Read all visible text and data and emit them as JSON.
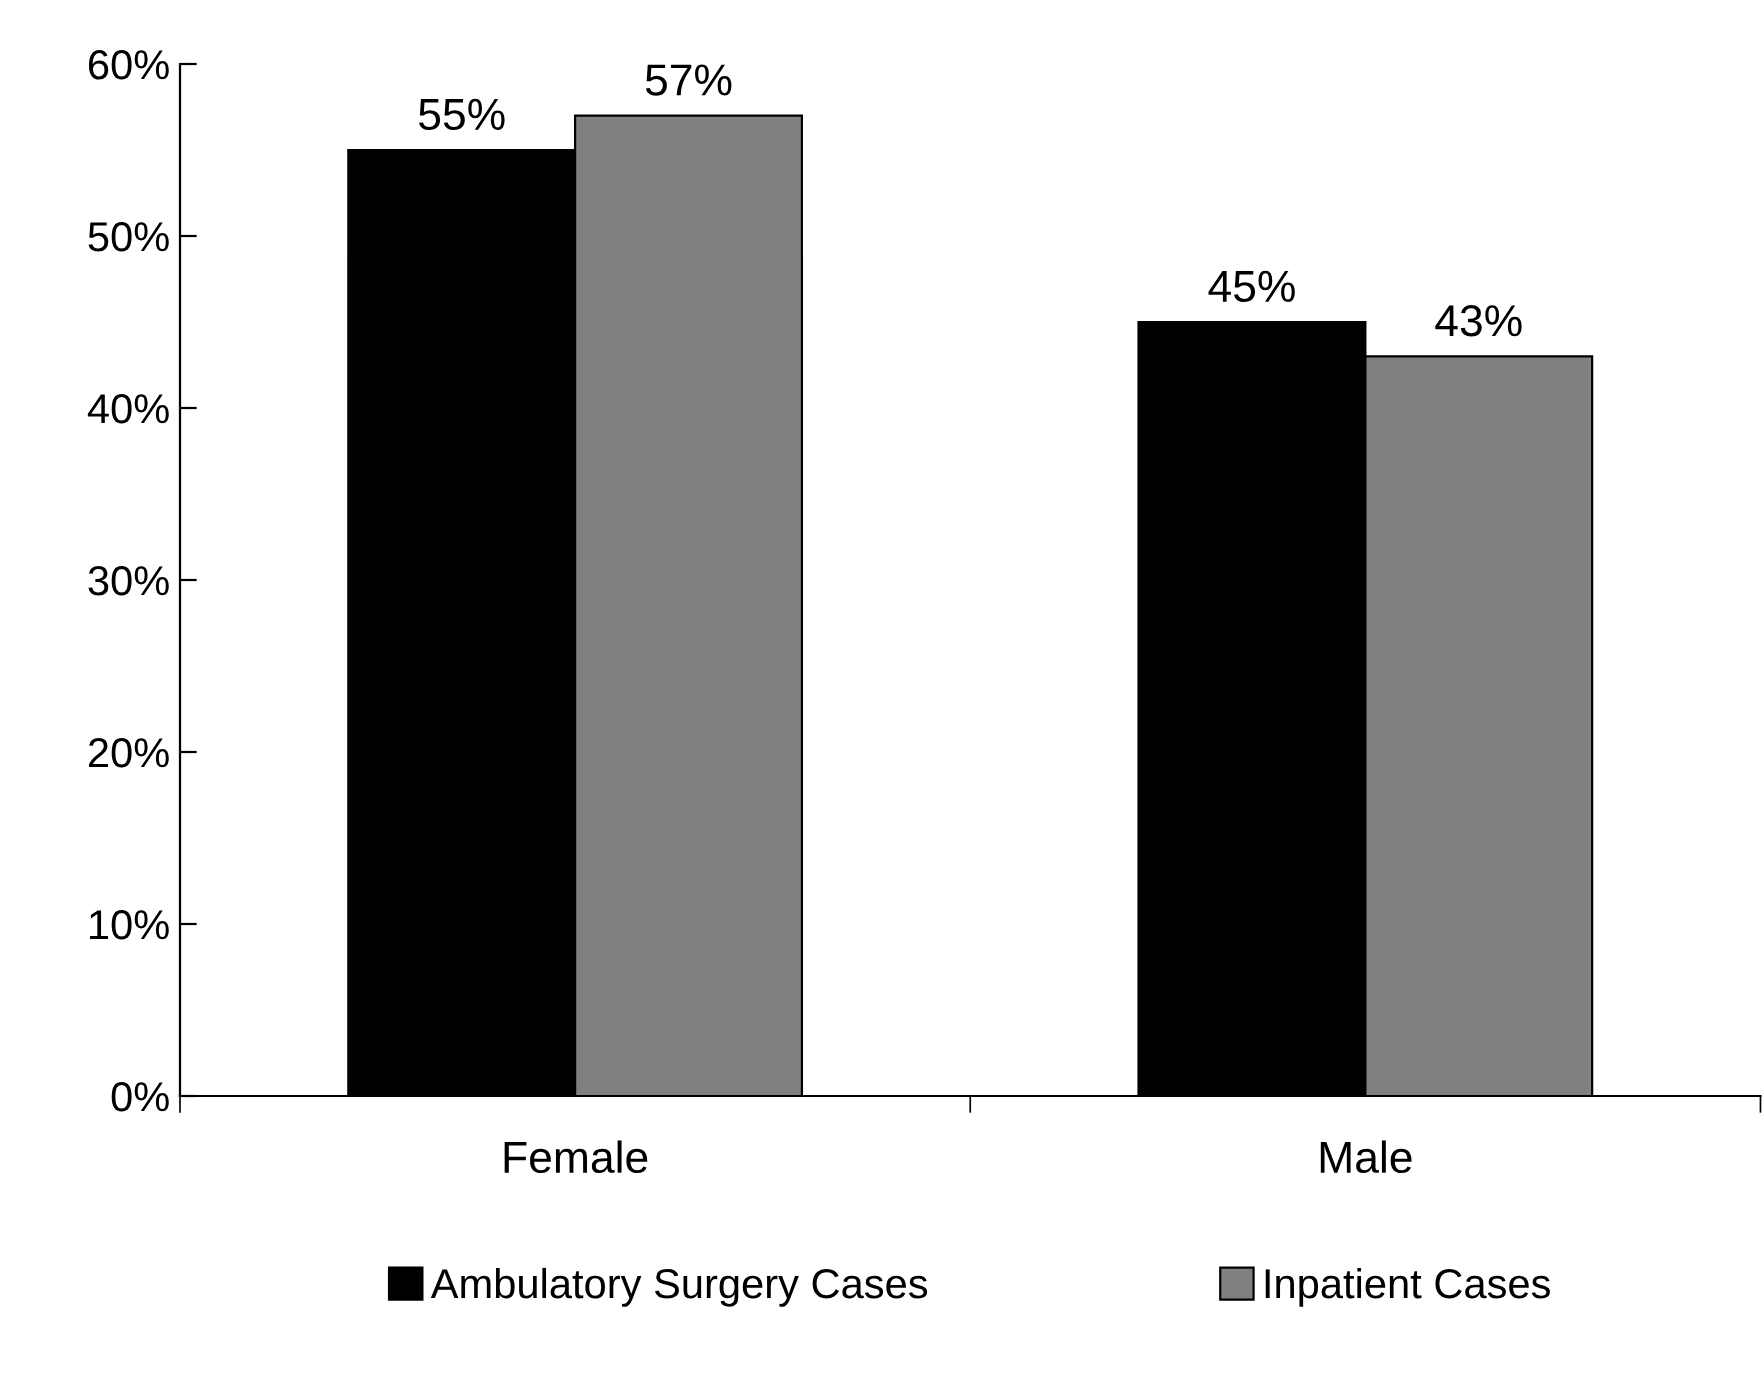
{
  "chart_data": {
    "type": "bar",
    "categories": [
      "Female",
      "Male"
    ],
    "series": [
      {
        "name": "Ambulatory Surgery Cases",
        "color": "#000000",
        "values": [
          55,
          45
        ],
        "value_labels": [
          "55%",
          "45%"
        ]
      },
      {
        "name": "Inpatient Cases",
        "color": "#808080",
        "values": [
          57,
          43
        ],
        "value_labels": [
          "57%",
          "43%"
        ]
      }
    ],
    "ylim": [
      0,
      60
    ],
    "yticks": [
      {
        "value": 0,
        "label": "0%"
      },
      {
        "value": 10,
        "label": "10%"
      },
      {
        "value": 20,
        "label": "20%"
      },
      {
        "value": 30,
        "label": "30%"
      },
      {
        "value": 40,
        "label": "40%"
      },
      {
        "value": 50,
        "label": "50%"
      },
      {
        "value": 60,
        "label": "60%"
      }
    ],
    "grid": false,
    "legend": "bottom"
  }
}
